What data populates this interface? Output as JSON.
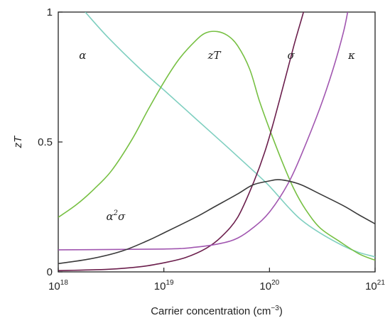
{
  "chart_data": {
    "type": "line",
    "xlabel": "Carrier concentration (cm",
    "xlabel_unit_exp": "−3",
    "xlabel_close": ")",
    "ylabel": "zT",
    "xscale": "log",
    "xlim": [
      1e+18,
      1e+21
    ],
    "ylim": [
      0,
      1
    ],
    "x_ticks": [
      {
        "base": "10",
        "exp": "18",
        "value": 1e+18
      },
      {
        "base": "10",
        "exp": "19",
        "value": 1e+19
      },
      {
        "base": "10",
        "exp": "20",
        "value": 1e+20
      },
      {
        "base": "10",
        "exp": "21",
        "value": 1e+21
      }
    ],
    "y_ticks": [
      {
        "label": "0",
        "value": 0
      },
      {
        "label": "0.5",
        "value": 0.5
      },
      {
        "label": "1",
        "value": 1
      }
    ],
    "grid": false,
    "series": [
      {
        "name": "α",
        "color": "#7fcfc0",
        "points": [
          [
            1.8e+18,
            1.0
          ],
          [
            3e+18,
            0.9
          ],
          [
            6e+18,
            0.78
          ],
          [
            1e+19,
            0.7
          ],
          [
            2e+19,
            0.59
          ],
          [
            4e+19,
            0.48
          ],
          [
            7e+19,
            0.39
          ],
          [
            1e+20,
            0.33
          ],
          [
            1.5e+20,
            0.25
          ],
          [
            2e+20,
            0.2
          ],
          [
            3e+20,
            0.15
          ],
          [
            5e+20,
            0.1
          ],
          [
            7e+20,
            0.075
          ],
          [
            1e+21,
            0.058
          ]
        ]
      },
      {
        "name": "zT",
        "color": "#77c043",
        "points": [
          [
            1e+18,
            0.21
          ],
          [
            1.5e+18,
            0.26
          ],
          [
            2.2e+18,
            0.32
          ],
          [
            3.2e+18,
            0.39
          ],
          [
            5e+18,
            0.51
          ],
          [
            7e+18,
            0.62
          ],
          [
            1e+19,
            0.73
          ],
          [
            1.4e+19,
            0.82
          ],
          [
            2e+19,
            0.89
          ],
          [
            2.5e+19,
            0.92
          ],
          [
            3.2e+19,
            0.925
          ],
          [
            4e+19,
            0.91
          ],
          [
            5e+19,
            0.87
          ],
          [
            6.5e+19,
            0.78
          ],
          [
            8e+19,
            0.66
          ],
          [
            1e+20,
            0.55
          ],
          [
            1.3e+20,
            0.43
          ],
          [
            1.7e+20,
            0.32
          ],
          [
            2.2e+20,
            0.24
          ],
          [
            3e+20,
            0.17
          ],
          [
            4.5e+20,
            0.12
          ],
          [
            7e+20,
            0.07
          ],
          [
            1e+21,
            0.045
          ]
        ]
      },
      {
        "name": "σ",
        "color": "#6b1e4c",
        "points": [
          [
            1e+18,
            0.005
          ],
          [
            3e+18,
            0.01
          ],
          [
            6e+18,
            0.02
          ],
          [
            1e+19,
            0.035
          ],
          [
            1.6e+19,
            0.055
          ],
          [
            2.5e+19,
            0.09
          ],
          [
            3.5e+19,
            0.135
          ],
          [
            5e+19,
            0.21
          ],
          [
            7e+19,
            0.34
          ],
          [
            9e+19,
            0.46
          ],
          [
            1.1e+20,
            0.58
          ],
          [
            1.4e+20,
            0.74
          ],
          [
            1.7e+20,
            0.87
          ],
          [
            2e+20,
            0.97
          ],
          [
            2.1e+20,
            1.0
          ]
        ]
      },
      {
        "name": "κ",
        "color": "#a156b0",
        "points": [
          [
            1e+18,
            0.085
          ],
          [
            1e+19,
            0.088
          ],
          [
            2e+19,
            0.095
          ],
          [
            3.5e+19,
            0.11
          ],
          [
            5e+19,
            0.13
          ],
          [
            7e+19,
            0.17
          ],
          [
            1e+20,
            0.23
          ],
          [
            1.5e+20,
            0.34
          ],
          [
            2e+20,
            0.45
          ],
          [
            3e+20,
            0.63
          ],
          [
            4e+20,
            0.78
          ],
          [
            5e+20,
            0.92
          ],
          [
            5.5e+20,
            1.0
          ]
        ]
      },
      {
        "name": "α²σ",
        "color": "#3a3a3a",
        "points": [
          [
            1e+18,
            0.032
          ],
          [
            2e+18,
            0.05
          ],
          [
            4e+18,
            0.08
          ],
          [
            7e+18,
            0.12
          ],
          [
            1e+19,
            0.15
          ],
          [
            2e+19,
            0.21
          ],
          [
            3e+19,
            0.25
          ],
          [
            5e+19,
            0.3
          ],
          [
            7e+19,
            0.335
          ],
          [
            1e+20,
            0.35
          ],
          [
            1.2e+20,
            0.355
          ],
          [
            1.5e+20,
            0.35
          ],
          [
            2e+20,
            0.335
          ],
          [
            3e+20,
            0.3
          ],
          [
            5e+20,
            0.255
          ],
          [
            7e+20,
            0.22
          ],
          [
            1e+21,
            0.185
          ]
        ]
      }
    ],
    "curve_labels": [
      {
        "text": "α",
        "x": 1.7e+18,
        "y": 0.82
      },
      {
        "text": "zT",
        "x": 3e+19,
        "y": 0.82
      },
      {
        "text": "σ",
        "x": 1.6e+20,
        "y": 0.82
      },
      {
        "text": "κ",
        "x": 6e+20,
        "y": 0.82
      },
      {
        "text": "α",
        "sup": "2",
        "tail": "σ",
        "x": 3.5e+18,
        "y": 0.2
      }
    ]
  }
}
